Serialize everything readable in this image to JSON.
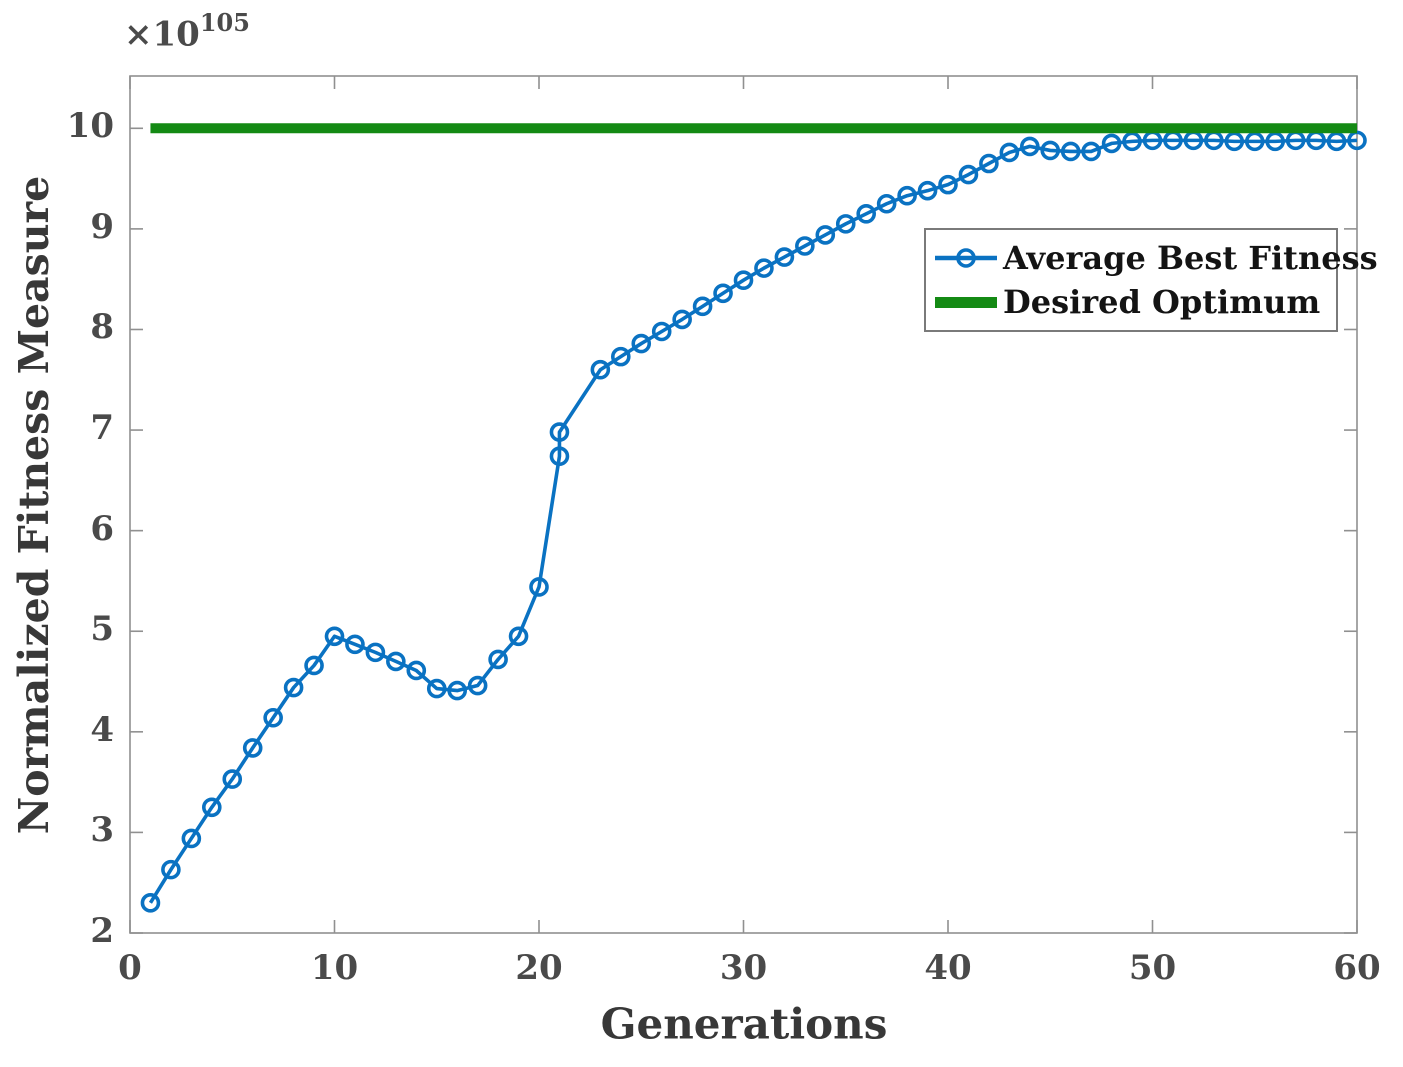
{
  "chart_data": {
    "type": "line",
    "title": "",
    "xlabel": "Generations",
    "ylabel": "Normalized Fitness Measure",
    "y_axis_multiplier": {
      "prefix": "×10",
      "power": "105"
    },
    "xlim": [
      0,
      60
    ],
    "ylim": [
      2,
      10.52
    ],
    "x_ticks": [
      0,
      10,
      20,
      30,
      40,
      50,
      60
    ],
    "y_ticks": [
      2,
      3,
      4,
      5,
      6,
      7,
      8,
      9,
      10
    ],
    "grid": false,
    "legend_position": "upper right inside",
    "series": [
      {
        "name": "Average Best Fitness",
        "color": "#0a72c2",
        "marker": "circle",
        "line_width": 3.6,
        "x": [
          1,
          2,
          3,
          4,
          5,
          6,
          7,
          8,
          9,
          10,
          11,
          12,
          13,
          14,
          15,
          16,
          17,
          18,
          19,
          20,
          21,
          21,
          23,
          24,
          25,
          26,
          27,
          28,
          29,
          30,
          31,
          32,
          33,
          34,
          35,
          36,
          37,
          38,
          39,
          40,
          41,
          42,
          43,
          44,
          45,
          46,
          47,
          48,
          49,
          50,
          51,
          52,
          53,
          54,
          55,
          56,
          57,
          58,
          59,
          60
        ],
        "y": [
          2.3,
          2.63,
          2.94,
          3.25,
          3.53,
          3.84,
          4.14,
          4.44,
          4.66,
          4.95,
          4.87,
          4.79,
          4.7,
          4.61,
          4.43,
          4.41,
          4.46,
          4.72,
          4.95,
          5.44,
          6.74,
          6.98,
          7.6,
          7.73,
          7.86,
          7.98,
          8.1,
          8.23,
          8.36,
          8.49,
          8.61,
          8.72,
          8.83,
          8.94,
          9.05,
          9.15,
          9.25,
          9.33,
          9.38,
          9.44,
          9.54,
          9.65,
          9.76,
          9.82,
          9.78,
          9.77,
          9.77,
          9.85,
          9.87,
          9.88,
          9.88,
          9.88,
          9.88,
          9.87,
          9.87,
          9.87,
          9.88,
          9.88,
          9.87,
          9.88
        ]
      },
      {
        "name": "Desired Optimum",
        "color": "#148a14",
        "marker": "none",
        "line_width": 10,
        "x": [
          1,
          60
        ],
        "y": [
          10,
          10
        ]
      }
    ]
  },
  "colors": {
    "axis": "#909090",
    "tick_label": "#4a4a4a",
    "axis_label": "#383838",
    "legend_text": "#141414",
    "background": "#ffffff"
  }
}
